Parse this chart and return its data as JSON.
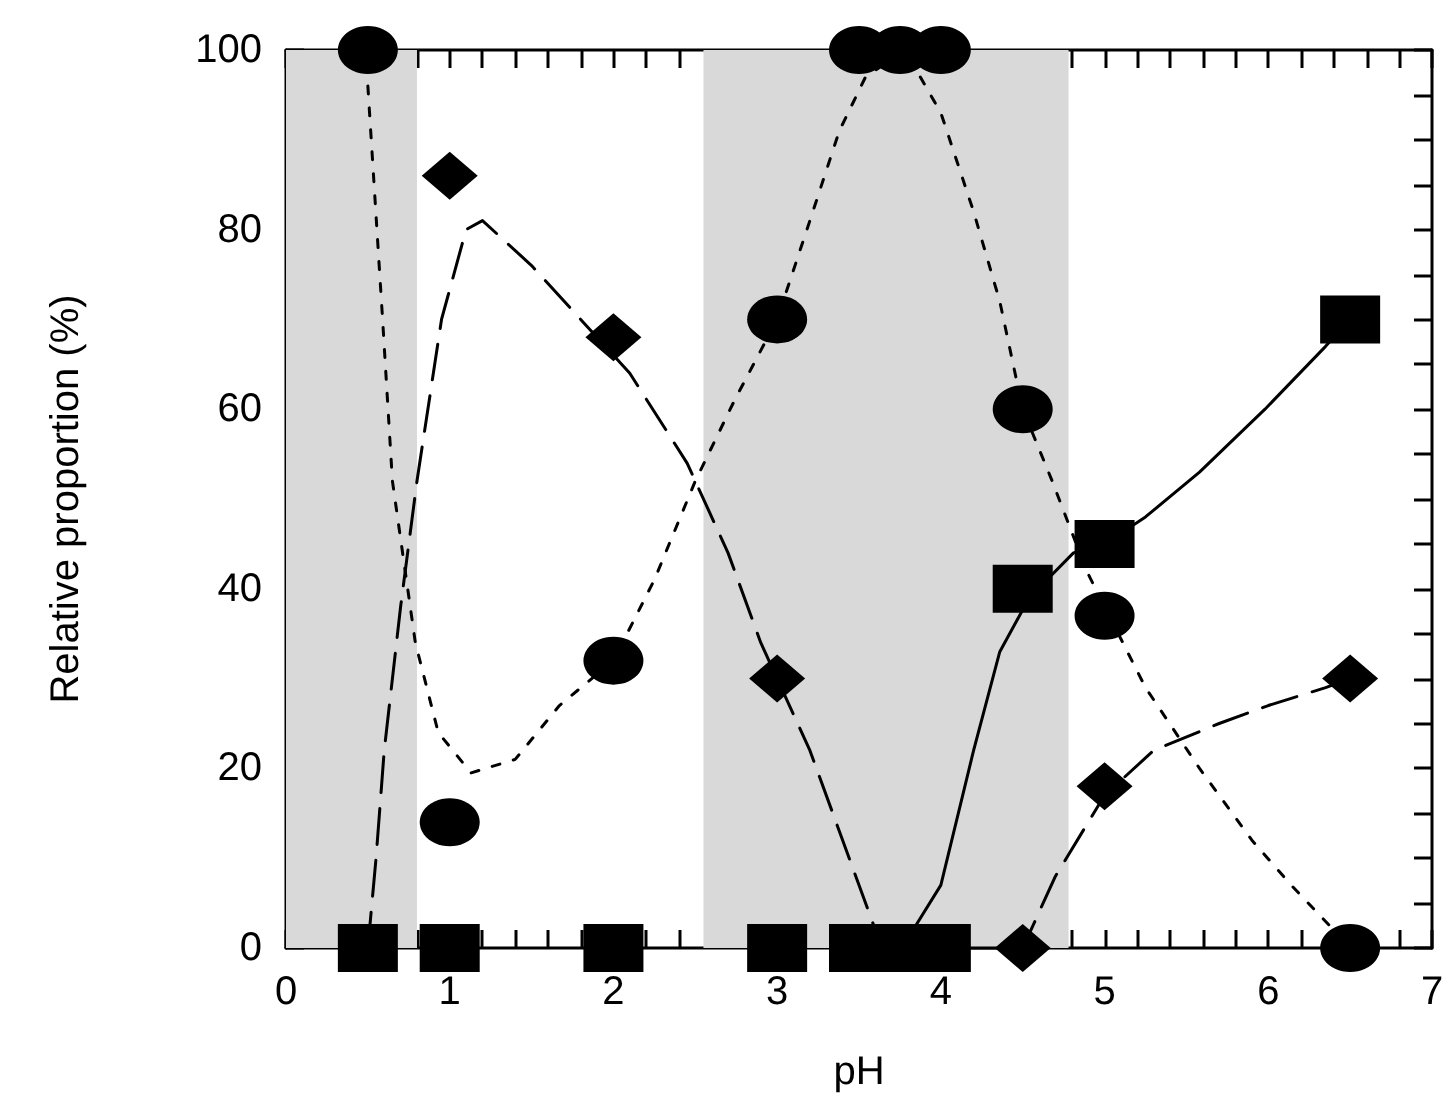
{
  "chart_data": {
    "type": "scatter",
    "xlabel": "pH",
    "ylabel": "Relative proportion (%)",
    "xlim": [
      0,
      7
    ],
    "ylim": [
      0,
      100
    ],
    "xticks": [
      0,
      {
        "value": 0.2,
        "label": null
      },
      {
        "value": 0.4,
        "label": null
      },
      {
        "value": 0.6,
        "label": null
      },
      {
        "value": 0.8,
        "label": null
      },
      1,
      {
        "value": 1.2,
        "label": null
      },
      {
        "value": 1.4,
        "label": null
      },
      {
        "value": 1.6,
        "label": null
      },
      {
        "value": 1.8,
        "label": null
      },
      2,
      {
        "value": 2.2,
        "label": null
      },
      {
        "value": 2.4,
        "label": null
      },
      {
        "value": 2.6,
        "label": null
      },
      {
        "value": 2.8,
        "label": null
      },
      3,
      {
        "value": 3.2,
        "label": null
      },
      {
        "value": 3.4,
        "label": null
      },
      {
        "value": 3.6,
        "label": null
      },
      {
        "value": 3.8,
        "label": null
      },
      4,
      {
        "value": 4.2,
        "label": null
      },
      {
        "value": 4.4,
        "label": null
      },
      {
        "value": 4.6,
        "label": null
      },
      {
        "value": 4.8,
        "label": null
      },
      5,
      {
        "value": 5.2,
        "label": null
      },
      {
        "value": 5.4,
        "label": null
      },
      {
        "value": 5.6,
        "label": null
      },
      {
        "value": 5.8,
        "label": null
      },
      6,
      {
        "value": 6.2,
        "label": null
      },
      {
        "value": 6.4,
        "label": null
      },
      {
        "value": 6.6,
        "label": null
      },
      {
        "value": 6.8,
        "label": null
      },
      7
    ],
    "yticks": [
      0,
      {
        "value": 5,
        "label": null
      },
      {
        "value": 10,
        "label": null
      },
      {
        "value": 15,
        "label": null
      },
      20,
      {
        "value": 25,
        "label": null
      },
      {
        "value": 30,
        "label": null
      },
      {
        "value": 35,
        "label": null
      },
      40,
      {
        "value": 45,
        "label": null
      },
      {
        "value": 50,
        "label": null
      },
      {
        "value": 55,
        "label": null
      },
      60,
      {
        "value": 65,
        "label": null
      },
      {
        "value": 70,
        "label": null
      },
      {
        "value": 75,
        "label": null
      },
      80,
      {
        "value": 85,
        "label": null
      },
      {
        "value": 90,
        "label": null
      },
      {
        "value": 95,
        "label": null
      },
      100
    ],
    "bands": [
      {
        "axis": "x",
        "from": 0,
        "to": 0.8,
        "color": "#d9d9d9"
      },
      {
        "axis": "x",
        "from": 2.55,
        "to": 4.78,
        "color": "#d9d9d9"
      }
    ],
    "series": [
      {
        "type": "line",
        "color": "#000000",
        "line_style": "dotted",
        "marker": "none",
        "x": [
          0.5,
          0.59,
          0.65,
          0.79,
          0.93,
          1.13,
          1.4,
          1.67,
          2,
          2.25,
          2.5,
          2.74,
          3,
          3.2,
          3.38,
          3.54,
          3.78,
          4,
          4.2,
          4.36,
          4.5,
          4.68,
          4.89,
          5.25,
          5.58,
          5.9,
          6.14,
          6.4
        ],
        "values": [
          96,
          70,
          52,
          34,
          24,
          19.5,
          21,
          27,
          32,
          41,
          52,
          61,
          70,
          81,
          91,
          97,
          100,
          93,
          82,
          72,
          60,
          52,
          42,
          29,
          20,
          12,
          7,
          2
        ]
      },
      {
        "type": "line",
        "color": "#000000",
        "line_style": "dashed",
        "marker": "none",
        "x": [
          0.5,
          0.55,
          0.6,
          0.7,
          0.8,
          0.95,
          1.1,
          1.2,
          1.5,
          1.8,
          2.1,
          2.45,
          2.7,
          2.9,
          3.2,
          3.4,
          3.6,
          3.7,
          4.5,
          4.7,
          5,
          5.3,
          5.7,
          6,
          6.35,
          6.5
        ],
        "values": [
          0,
          10,
          22,
          38,
          52,
          70,
          80,
          81,
          76,
          70,
          64,
          54,
          44,
          34,
          22,
          12,
          2,
          0,
          0,
          8,
          17,
          22,
          25,
          27,
          29,
          30
        ]
      },
      {
        "type": "line",
        "color": "#000000",
        "line_style": "solid",
        "marker": "none",
        "x": [
          3.75,
          3.83,
          4,
          4.2,
          4.36,
          4.54,
          4.81,
          5,
          5.25,
          5.58,
          5.98,
          6.35,
          6.5
        ],
        "values": [
          0,
          2,
          7,
          22,
          33,
          39,
          44,
          45,
          48,
          53,
          60,
          67,
          70
        ]
      },
      {
        "type": "scatter",
        "color": "#000000",
        "marker": "circle",
        "x": [
          0.5,
          1,
          2,
          3,
          3.5,
          3.75,
          4,
          4.5,
          5,
          6.5
        ],
        "values": [
          100,
          14,
          32,
          70,
          100,
          100,
          100,
          60,
          37,
          0
        ]
      },
      {
        "type": "scatter",
        "color": "#000000",
        "marker": "diamond",
        "x": [
          1,
          2,
          3,
          4.5,
          5,
          6.5
        ],
        "values": [
          86,
          68,
          30,
          0,
          18,
          30
        ]
      },
      {
        "type": "scatter",
        "color": "#000000",
        "marker": "square",
        "x": [
          0.5,
          1,
          2,
          3,
          3.5,
          3.75,
          4,
          4.5,
          5,
          6.5
        ],
        "values": [
          0,
          0,
          0,
          0,
          0,
          0,
          0,
          40,
          45,
          70
        ]
      }
    ]
  }
}
